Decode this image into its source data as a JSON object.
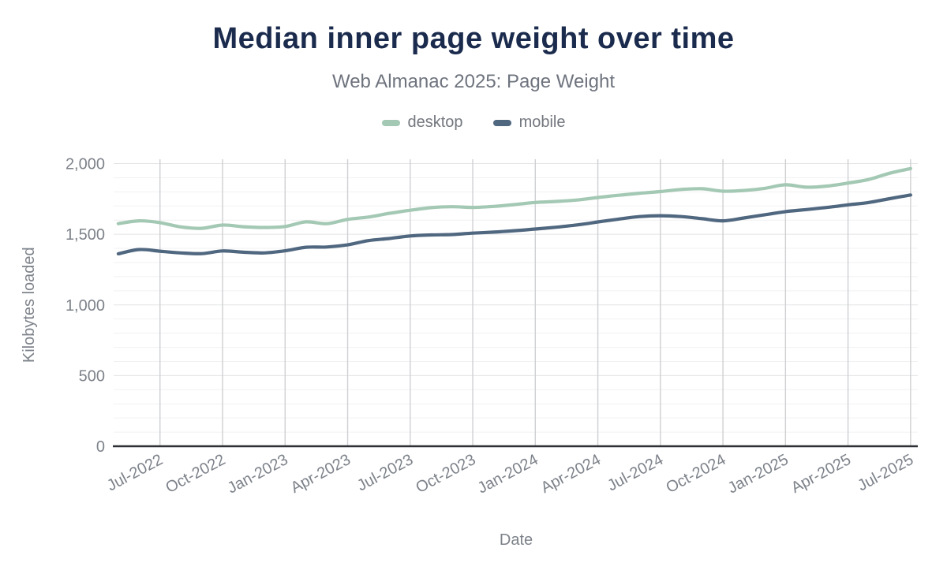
{
  "header": {
    "title": "Median inner page weight over time",
    "subtitle": "Web Almanac 2025: Page Weight"
  },
  "legend": [
    {
      "label": "desktop",
      "color": "#a3c8b3"
    },
    {
      "label": "mobile",
      "color": "#506780"
    }
  ],
  "chart_data": {
    "type": "line",
    "title": "Median inner page weight over time",
    "subtitle": "Web Almanac 2025: Page Weight",
    "xlabel": "Date",
    "ylabel": "Kilobytes loaded",
    "ylim": [
      0,
      2000
    ],
    "grid": "both",
    "legend_position": "top",
    "y_ticks": [
      0,
      500,
      1000,
      1500,
      2000
    ],
    "y_tick_labels": [
      "0",
      "500",
      "1,000",
      "1,500",
      "2,000"
    ],
    "x_tick_labels": [
      "Jul-2022",
      "Oct-2022",
      "Jan-2023",
      "Apr-2023",
      "Jul-2023",
      "Oct-2023",
      "Jan-2024",
      "Apr-2024",
      "Jul-2024",
      "Oct-2024",
      "Jan-2025",
      "Apr-2025",
      "Jul-2025"
    ],
    "months": [
      "May-2022",
      "Jun-2022",
      "Jul-2022",
      "Aug-2022",
      "Sep-2022",
      "Oct-2022",
      "Nov-2022",
      "Dec-2022",
      "Jan-2023",
      "Feb-2023",
      "Mar-2023",
      "Apr-2023",
      "May-2023",
      "Jun-2023",
      "Jul-2023",
      "Aug-2023",
      "Sep-2023",
      "Oct-2023",
      "Nov-2023",
      "Dec-2023",
      "Jan-2024",
      "Feb-2024",
      "Mar-2024",
      "Apr-2024",
      "May-2024",
      "Jun-2024",
      "Jul-2024",
      "Aug-2024",
      "Sep-2024",
      "Oct-2024",
      "Nov-2024",
      "Dec-2024",
      "Jan-2025",
      "Feb-2025",
      "Mar-2025",
      "Apr-2025",
      "May-2025",
      "Jun-2025",
      "Jul-2025"
    ],
    "series": [
      {
        "name": "desktop",
        "color": "#a3c8b3",
        "values": [
          1575,
          1595,
          1582,
          1552,
          1542,
          1565,
          1553,
          1548,
          1555,
          1588,
          1575,
          1605,
          1622,
          1648,
          1670,
          1688,
          1695,
          1690,
          1697,
          1710,
          1725,
          1732,
          1742,
          1760,
          1776,
          1790,
          1802,
          1817,
          1822,
          1805,
          1810,
          1825,
          1850,
          1833,
          1841,
          1862,
          1888,
          1932,
          1965
        ]
      },
      {
        "name": "mobile",
        "color": "#506780",
        "values": [
          1362,
          1392,
          1380,
          1368,
          1363,
          1382,
          1373,
          1368,
          1383,
          1408,
          1410,
          1425,
          1455,
          1470,
          1488,
          1495,
          1498,
          1508,
          1515,
          1525,
          1537,
          1550,
          1566,
          1587,
          1607,
          1625,
          1631,
          1625,
          1610,
          1595,
          1615,
          1638,
          1660,
          1675,
          1690,
          1708,
          1725,
          1752,
          1778
        ]
      }
    ]
  }
}
